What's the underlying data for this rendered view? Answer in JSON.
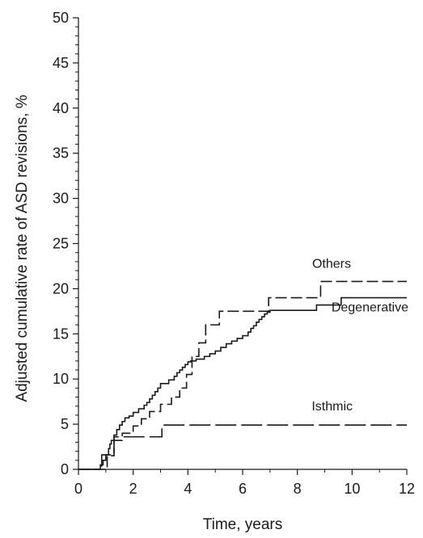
{
  "chart_data": {
    "type": "line",
    "step": true,
    "xlabel": "Time, years",
    "ylabel": "Adjusted cumulative rate of ASD revisions, %",
    "xlim": [
      0,
      12
    ],
    "ylim": [
      0,
      50
    ],
    "xticks": [
      0,
      2,
      4,
      6,
      8,
      10,
      12
    ],
    "yticks": [
      0,
      5,
      10,
      15,
      20,
      25,
      30,
      35,
      40,
      45,
      50
    ],
    "grid": false,
    "legend": "inline labels at right",
    "series": [
      {
        "name": "Degenerative",
        "line_style": "solid",
        "color": "#1a1a1a",
        "x": [
          0,
          0.8,
          0.9,
          1.0,
          1.1,
          1.15,
          1.2,
          1.3,
          1.4,
          1.5,
          1.6,
          1.7,
          1.85,
          2.0,
          2.2,
          2.4,
          2.5,
          2.6,
          2.7,
          2.8,
          2.9,
          3.0,
          3.3,
          3.5,
          3.6,
          3.7,
          3.8,
          3.9,
          4.0,
          4.1,
          4.3,
          4.6,
          4.8,
          5.0,
          5.2,
          5.4,
          5.6,
          5.8,
          6.0,
          6.2,
          6.3,
          6.4,
          6.5,
          6.6,
          6.7,
          6.8,
          6.9,
          7.0,
          8.7,
          9.6,
          12.0
        ],
        "y": [
          0,
          0.5,
          1.0,
          1.6,
          2.3,
          2.8,
          3.2,
          3.8,
          4.4,
          4.9,
          5.3,
          5.7,
          5.9,
          6.3,
          6.7,
          7.1,
          7.4,
          7.8,
          8.2,
          8.6,
          9.0,
          9.5,
          9.9,
          10.3,
          10.7,
          11.0,
          11.3,
          11.6,
          11.9,
          12.0,
          12.2,
          12.5,
          12.8,
          13.1,
          13.5,
          13.9,
          14.2,
          14.5,
          14.8,
          15.2,
          15.6,
          15.9,
          16.3,
          16.6,
          16.9,
          17.2,
          17.4,
          17.6,
          18.2,
          19.0,
          19.0
        ]
      },
      {
        "name": "Others",
        "line_style": "dashed",
        "color": "#1a1a1a",
        "x": [
          0,
          1.05,
          1.3,
          1.6,
          2.0,
          2.3,
          2.6,
          3.0,
          3.4,
          3.7,
          3.95,
          4.15,
          4.4,
          4.65,
          5.15,
          6.95,
          8.85,
          12.0
        ],
        "y": [
          0,
          1.5,
          3.2,
          4.0,
          4.8,
          5.6,
          6.4,
          7.2,
          8.0,
          9.0,
          10.5,
          12.5,
          14.0,
          16.0,
          17.5,
          19.0,
          20.8,
          20.8
        ]
      },
      {
        "name": "Isthmic",
        "line_style": "long-dashed",
        "color": "#1a1a1a",
        "x": [
          0,
          0.85,
          1.3,
          3.05,
          12.0
        ],
        "y": [
          0,
          1.6,
          3.6,
          4.9,
          4.9
        ]
      }
    ]
  }
}
